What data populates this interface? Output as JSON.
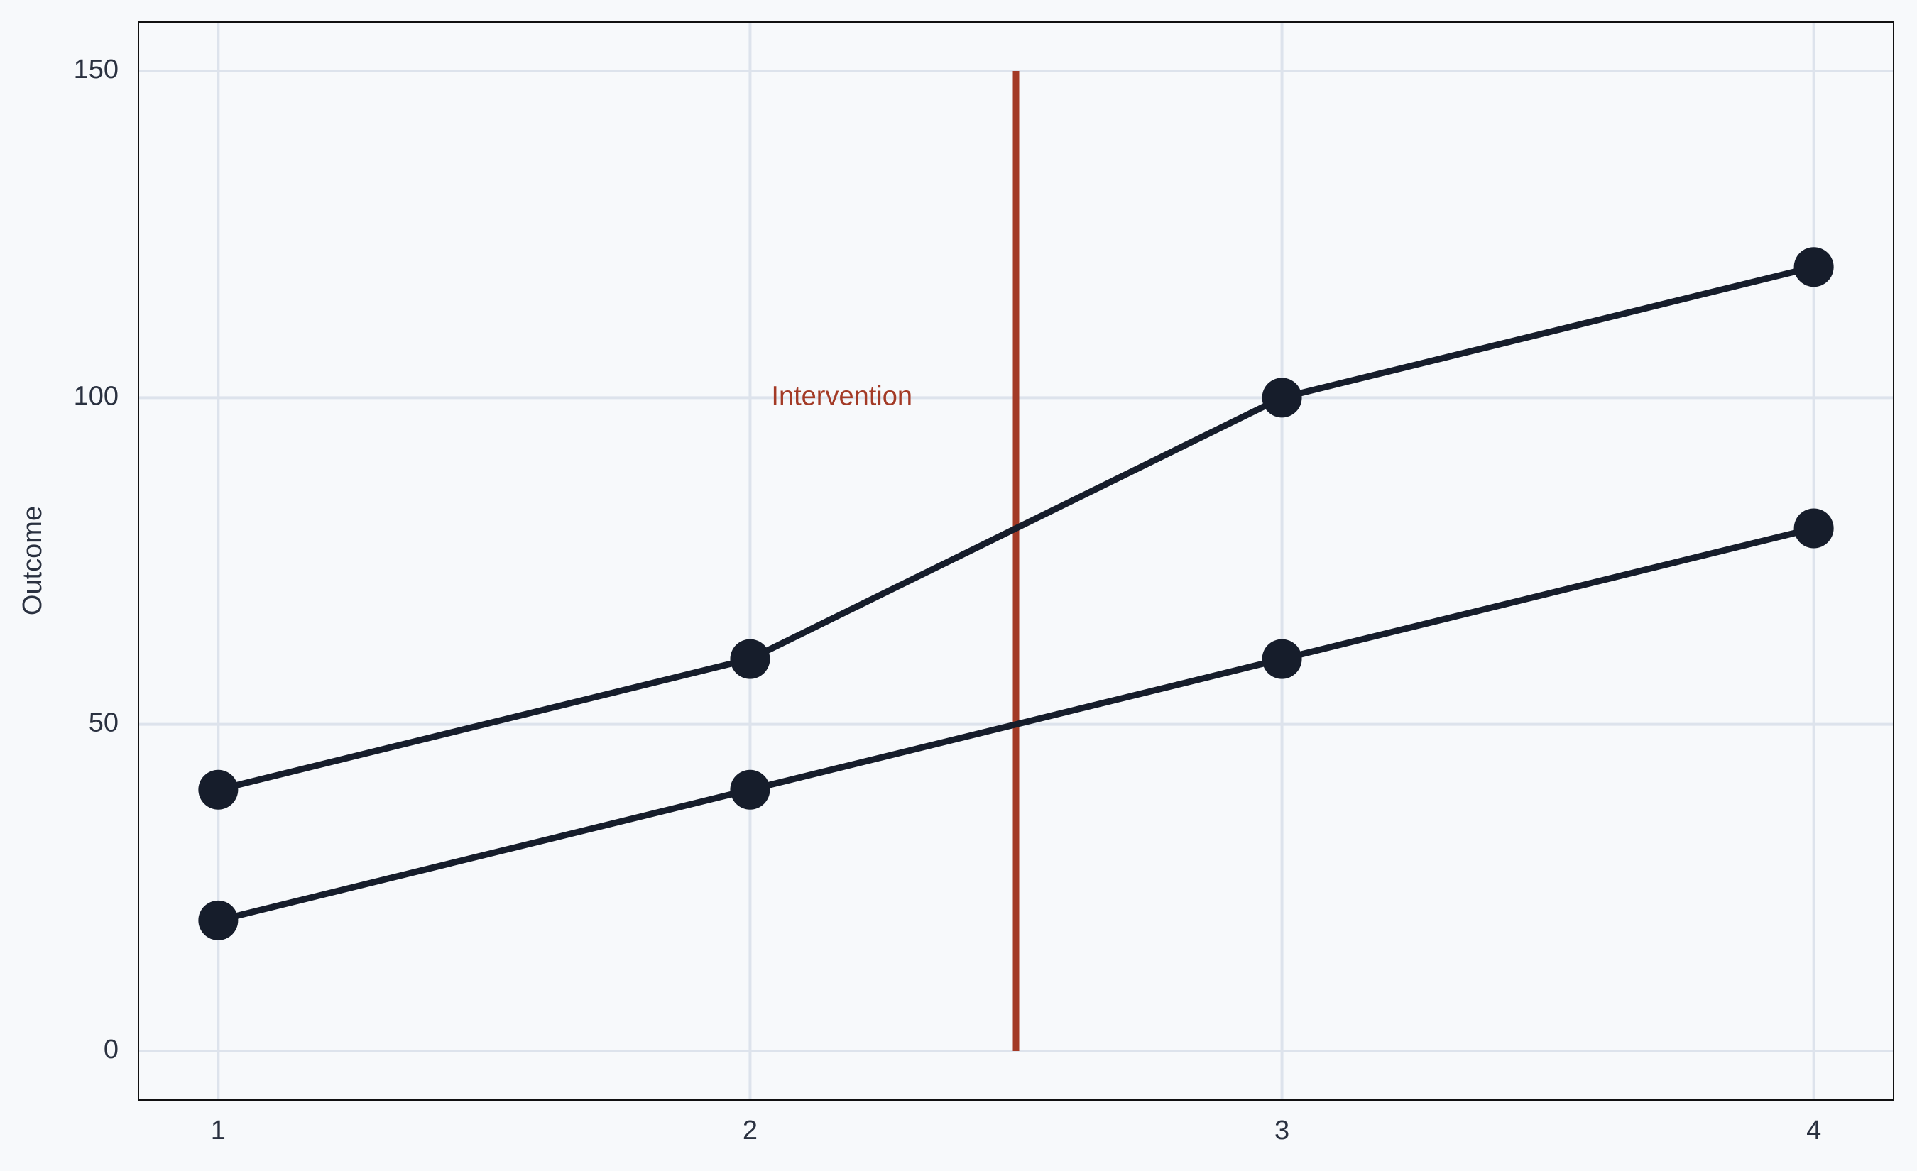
{
  "chart_data": {
    "type": "line",
    "y_label": "Outcome",
    "x": [
      1,
      2,
      3,
      4
    ],
    "series": [
      {
        "color": "#161d2b",
        "values": [
          40,
          60,
          100,
          120
        ]
      },
      {
        "color": "#161d2b",
        "values": [
          20,
          40,
          60,
          80
        ]
      }
    ],
    "xlim": [
      0.85,
      4.15
    ],
    "xticks": [
      1,
      2,
      3,
      4
    ],
    "ylim": [
      -7.5,
      157.5
    ],
    "yticks": [
      0,
      50,
      100,
      150
    ],
    "grid": true,
    "vline": {
      "x": 2.5,
      "ymin": 0,
      "ymax": 150,
      "color": "#a33a26"
    },
    "annotation": {
      "text": "Intervention",
      "x": 2.04,
      "y": 100,
      "color": "#a33a26"
    }
  }
}
